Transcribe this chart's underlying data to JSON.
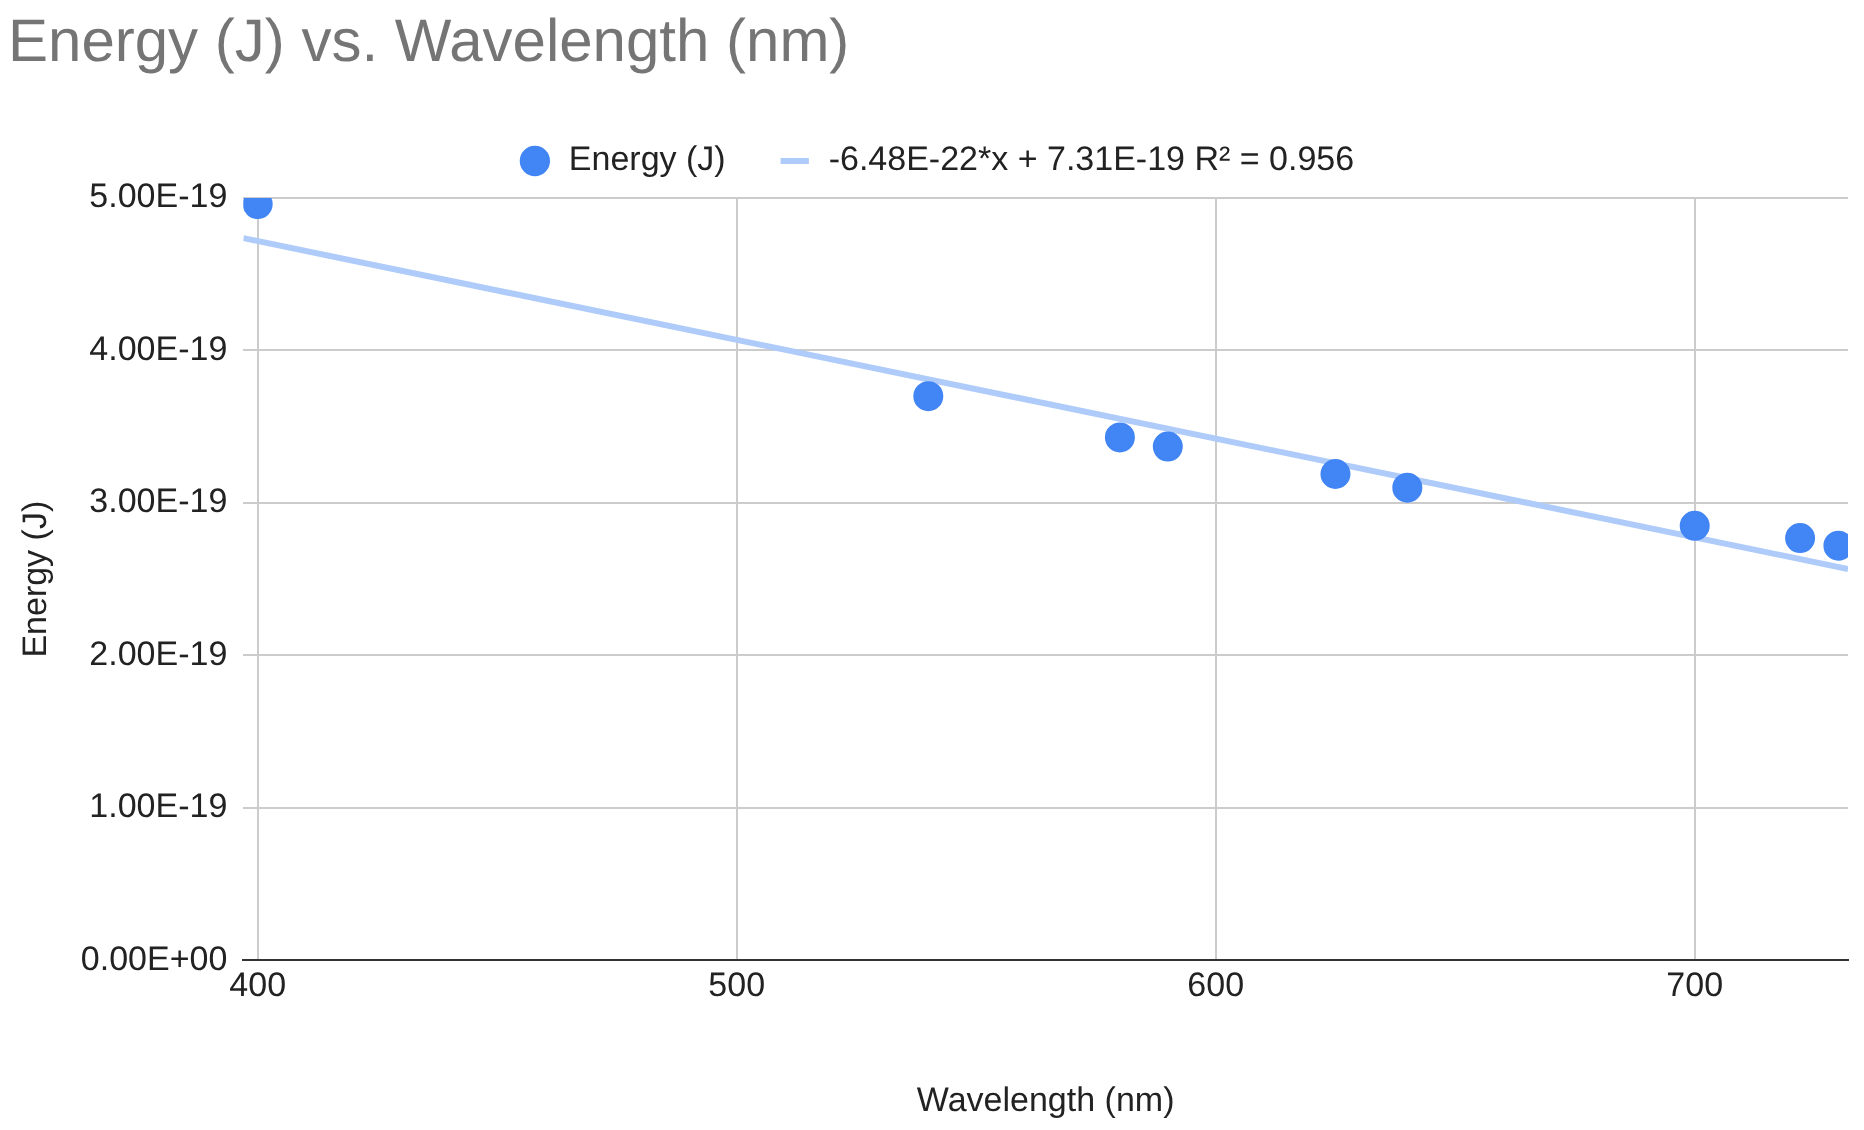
{
  "chart_data": {
    "type": "scatter",
    "title": "Energy (J) vs. Wavelength (nm)",
    "xlabel": "Wavelength (nm)",
    "ylabel": "Energy (J)",
    "xlim": [
      397,
      732
    ],
    "xticks": [
      400,
      500,
      600,
      700
    ],
    "ylim": [
      0,
      5e-19
    ],
    "yticks": [
      {
        "value": 0,
        "label": "0.00E+00"
      },
      {
        "value": 1e-19,
        "label": "1.00E-19"
      },
      {
        "value": 2e-19,
        "label": "2.00E-19"
      },
      {
        "value": 3e-19,
        "label": "3.00E-19"
      },
      {
        "value": 4e-19,
        "label": "4.00E-19"
      },
      {
        "value": 5e-19,
        "label": "5.00E-19"
      }
    ],
    "grid": true,
    "legend": "top",
    "marker": "circle",
    "series": [
      {
        "name": "Energy (J)",
        "color": "#4285f4",
        "x": [
          400,
          540,
          580,
          590,
          625,
          640,
          700,
          722,
          730
        ],
        "values": [
          4.96e-19,
          3.7e-19,
          3.43e-19,
          3.37e-19,
          3.19e-19,
          3.1e-19,
          2.85e-19,
          2.77e-19,
          2.72e-19
        ]
      },
      {
        "name": "-6.48E-22*x + 7.31E-19 R² = 0.956",
        "type": "line",
        "marker": "none",
        "line_style": "solid",
        "color": "#aecbfa",
        "x": [
          397,
          732
        ],
        "values": [
          4.737e-19,
          2.567e-19
        ]
      }
    ]
  }
}
